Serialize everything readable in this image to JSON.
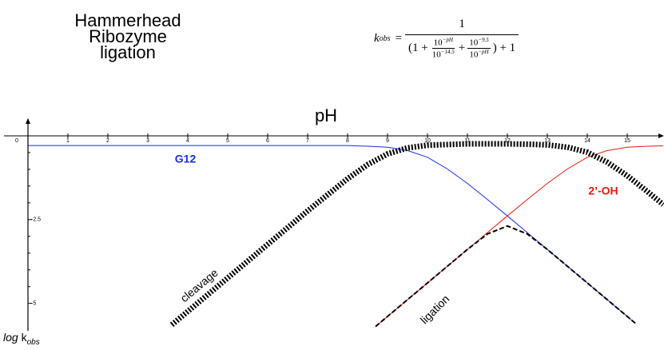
{
  "chart_data": {
    "type": "line",
    "title": [
      "Hammerhead Ribozyme",
      "ligation"
    ],
    "formula": {
      "lhs": "k",
      "lhs_sub": "obs",
      "eq": "=",
      "numerator": "1",
      "open": "(1 +",
      "f1_num": "10",
      "f1_num_exp": "−pH",
      "f1_den": "10",
      "f1_den_exp": "−14.5",
      "plus": "+",
      "f2_num": "10",
      "f2_num_exp": "−9.5",
      "f2_den": "10",
      "f2_den_exp": "−pH",
      "close": ") + 1"
    },
    "x_label": "pH",
    "y_label": {
      "italic": "log",
      "k": "k",
      "sub": "obs"
    },
    "xlim": [
      -0.6,
      15.9
    ],
    "ylim": [
      0.5,
      -5.7
    ],
    "xticks": [
      0,
      1,
      2,
      3,
      4,
      5,
      6,
      7,
      8,
      9,
      10,
      11,
      12,
      13,
      14,
      15
    ],
    "yticks": [
      -2.5,
      -5
    ],
    "y_minor_ticks": [
      -0.5,
      -1,
      -1.5,
      -2,
      -3,
      -3.5,
      -4,
      -4.5
    ],
    "series": [
      {
        "name": "G12",
        "color": "#1a2ee6",
        "line_style": "solid",
        "line_width": 1,
        "x": [
          0,
          8,
          8.5,
          9,
          9.5,
          10,
          10.5,
          11,
          11.5,
          12,
          12.5,
          13,
          13.5,
          14,
          14.5,
          15,
          15.2
        ],
        "values": [
          -0.29,
          -0.29,
          -0.31,
          -0.34,
          -0.44,
          -0.64,
          -0.99,
          -1.42,
          -1.9,
          -2.39,
          -2.89,
          -3.39,
          -3.89,
          -4.39,
          -4.89,
          -5.39,
          -5.59
        ]
      },
      {
        "name": "2’-OH",
        "color": "#e8180c",
        "line_style": "solid",
        "line_width": 1,
        "x": [
          8.7,
          9,
          9.5,
          10,
          10.5,
          11,
          11.5,
          12,
          12.5,
          13,
          13.5,
          14,
          14.5,
          15,
          15.5,
          15.9
        ],
        "values": [
          -5.69,
          -5.39,
          -4.89,
          -4.39,
          -3.89,
          -3.39,
          -2.89,
          -2.39,
          -1.9,
          -1.42,
          -0.99,
          -0.64,
          -0.44,
          -0.34,
          -0.31,
          -0.3
        ]
      },
      {
        "name": "cleavage",
        "color": "#000000",
        "line_style": "dotted",
        "line_width": 7,
        "x": [
          3.6,
          4,
          5,
          6,
          7,
          8,
          8.5,
          9,
          9.5,
          10,
          11,
          12,
          12.5,
          13,
          13.5,
          14,
          14.5,
          15,
          15.5,
          15.9
        ],
        "values": [
          -5.64,
          -5.24,
          -4.24,
          -3.24,
          -2.24,
          -1.28,
          -0.86,
          -0.54,
          -0.36,
          -0.28,
          -0.24,
          -0.24,
          -0.25,
          -0.27,
          -0.34,
          -0.49,
          -0.79,
          -1.19,
          -1.66,
          -2.05
        ]
      },
      {
        "name": "ligation",
        "color": "#000000",
        "line_style": "dashed",
        "line_width": 2,
        "x": [
          8.7,
          9.5,
          10.5,
          11,
          11.5,
          12,
          12.5,
          13,
          13.5,
          14.5,
          15.2
        ],
        "values": [
          -5.69,
          -4.89,
          -3.89,
          -3.39,
          -2.93,
          -2.69,
          -2.93,
          -3.39,
          -3.89,
          -4.89,
          -5.59
        ]
      }
    ]
  }
}
